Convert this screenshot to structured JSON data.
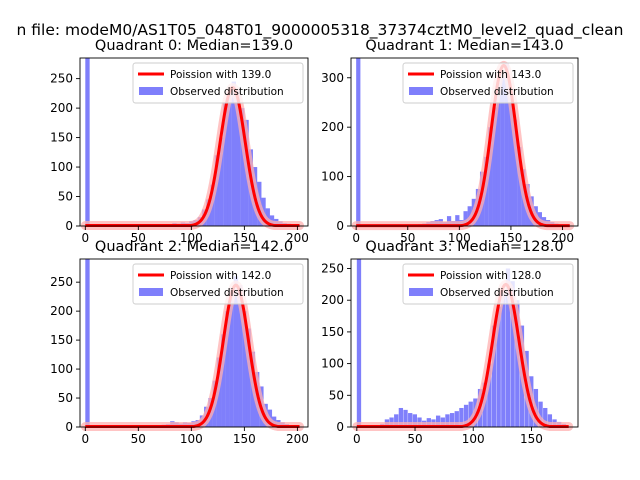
{
  "figure": {
    "suptitle": "n file: modeM0/AS1T05_048T01_9000005318_37374cztM0_level2_quad_clean"
  },
  "chart_data": [
    {
      "type": "bar",
      "title": "Quadrant 0: Median=139.0",
      "xlim": [
        -5,
        210
      ],
      "ylim": [
        0,
        285
      ],
      "xticks": [
        0,
        50,
        100,
        150,
        200
      ],
      "yticks": [
        0,
        50,
        100,
        150,
        200,
        250
      ],
      "legend": {
        "position": "top-right",
        "line_label": "Poission with 139.0",
        "bar_label": "Observed distribution"
      },
      "colors": {
        "bars": "#7f7ffb",
        "line": "#ff0000",
        "highlight": "#ffb0b0"
      },
      "poisson_mean": 139.0,
      "poisson_peak": 235,
      "poisson_sigma": 11.8,
      "bin_width": 4.1,
      "histogram": [
        [
          0,
          285
        ],
        [
          70,
          2
        ],
        [
          74,
          3
        ],
        [
          78,
          3
        ],
        [
          82,
          5
        ],
        [
          86,
          4
        ],
        [
          90,
          6
        ],
        [
          94,
          5
        ],
        [
          98,
          8
        ],
        [
          102,
          10
        ],
        [
          106,
          15
        ],
        [
          110,
          28
        ],
        [
          114,
          45
        ],
        [
          118,
          70
        ],
        [
          122,
          120
        ],
        [
          126,
          150
        ],
        [
          130,
          210
        ],
        [
          134,
          225
        ],
        [
          138,
          245
        ],
        [
          142,
          232
        ],
        [
          146,
          200
        ],
        [
          150,
          180
        ],
        [
          154,
          130
        ],
        [
          158,
          100
        ],
        [
          162,
          75
        ],
        [
          166,
          48
        ],
        [
          170,
          30
        ],
        [
          174,
          18
        ],
        [
          178,
          12
        ],
        [
          182,
          8
        ],
        [
          186,
          5
        ],
        [
          190,
          4
        ],
        [
          194,
          2
        ],
        [
          198,
          2
        ]
      ]
    },
    {
      "type": "bar",
      "title": "Quadrant 1: Median=143.0",
      "xlim": [
        -5,
        215
      ],
      "ylim": [
        0,
        340
      ],
      "xticks": [
        0,
        50,
        100,
        150,
        200
      ],
      "yticks": [
        0,
        100,
        200,
        300
      ],
      "legend": {
        "position": "top-right",
        "line_label": "Poission with 143.0",
        "bar_label": "Observed distribution"
      },
      "colors": {
        "bars": "#7f7ffb",
        "line": "#ff0000",
        "highlight": "#ffb0b0"
      },
      "poisson_mean": 143.0,
      "poisson_peak": 325,
      "poisson_sigma": 12.0,
      "bin_width": 4.1,
      "histogram": [
        [
          0,
          340
        ],
        [
          14,
          3
        ],
        [
          60,
          4
        ],
        [
          64,
          5
        ],
        [
          68,
          8
        ],
        [
          72,
          10
        ],
        [
          76,
          12
        ],
        [
          80,
          14
        ],
        [
          84,
          8
        ],
        [
          88,
          20
        ],
        [
          92,
          10
        ],
        [
          96,
          22
        ],
        [
          100,
          12
        ],
        [
          104,
          30
        ],
        [
          108,
          40
        ],
        [
          112,
          55
        ],
        [
          116,
          75
        ],
        [
          120,
          110
        ],
        [
          124,
          140
        ],
        [
          128,
          200
        ],
        [
          132,
          240
        ],
        [
          136,
          290
        ],
        [
          140,
          300
        ],
        [
          144,
          330
        ],
        [
          148,
          260
        ],
        [
          152,
          215
        ],
        [
          156,
          160
        ],
        [
          160,
          115
        ],
        [
          164,
          85
        ],
        [
          168,
          60
        ],
        [
          172,
          40
        ],
        [
          176,
          28
        ],
        [
          180,
          18
        ],
        [
          184,
          12
        ],
        [
          188,
          8
        ],
        [
          192,
          5
        ],
        [
          196,
          3
        ]
      ]
    },
    {
      "type": "bar",
      "title": "Quadrant 2: Median=142.0",
      "xlim": [
        -5,
        210
      ],
      "ylim": [
        0,
        290
      ],
      "xticks": [
        0,
        50,
        100,
        150,
        200
      ],
      "yticks": [
        0,
        50,
        100,
        150,
        200,
        250
      ],
      "legend": {
        "position": "top-right",
        "line_label": "Poission with 142.0",
        "bar_label": "Observed distribution"
      },
      "colors": {
        "bars": "#7f7ffb",
        "line": "#ff0000",
        "highlight": "#ffb0b0"
      },
      "poisson_mean": 142.0,
      "poisson_peak": 245,
      "poisson_sigma": 11.9,
      "bin_width": 4.1,
      "histogram": [
        [
          0,
          290
        ],
        [
          60,
          2
        ],
        [
          64,
          2
        ],
        [
          68,
          3
        ],
        [
          72,
          4
        ],
        [
          76,
          5
        ],
        [
          80,
          10
        ],
        [
          84,
          8
        ],
        [
          88,
          6
        ],
        [
          92,
          8
        ],
        [
          96,
          7
        ],
        [
          100,
          10
        ],
        [
          104,
          12
        ],
        [
          108,
          20
        ],
        [
          112,
          35
        ],
        [
          116,
          50
        ],
        [
          120,
          80
        ],
        [
          124,
          120
        ],
        [
          128,
          160
        ],
        [
          132,
          200
        ],
        [
          136,
          240
        ],
        [
          140,
          260
        ],
        [
          144,
          245
        ],
        [
          148,
          200
        ],
        [
          152,
          170
        ],
        [
          156,
          130
        ],
        [
          160,
          95
        ],
        [
          164,
          70
        ],
        [
          168,
          40
        ],
        [
          172,
          30
        ],
        [
          176,
          18
        ],
        [
          180,
          12
        ],
        [
          184,
          8
        ],
        [
          188,
          5
        ],
        [
          192,
          3
        ]
      ]
    },
    {
      "type": "bar",
      "title": "Quadrant 3: Median=128.0",
      "xlim": [
        -5,
        190
      ],
      "ylim": [
        0,
        265
      ],
      "xticks": [
        0,
        50,
        100,
        150
      ],
      "yticks": [
        0,
        50,
        100,
        150,
        200,
        250
      ],
      "legend": {
        "position": "top-right",
        "line_label": "Poission with 128.0",
        "bar_label": "Observed distribution"
      },
      "colors": {
        "bars": "#7f7ffb",
        "line": "#ff0000",
        "highlight": "#ffb0b0"
      },
      "poisson_mean": 128.0,
      "poisson_peak": 225,
      "poisson_sigma": 11.3,
      "bin_width": 3.7,
      "histogram": [
        [
          0,
          265
        ],
        [
          20,
          5
        ],
        [
          24,
          12
        ],
        [
          28,
          15
        ],
        [
          32,
          20
        ],
        [
          36,
          30
        ],
        [
          40,
          27
        ],
        [
          44,
          22
        ],
        [
          48,
          20
        ],
        [
          52,
          15
        ],
        [
          56,
          10
        ],
        [
          60,
          14
        ],
        [
          64,
          12
        ],
        [
          68,
          18
        ],
        [
          72,
          15
        ],
        [
          76,
          20
        ],
        [
          80,
          22
        ],
        [
          84,
          25
        ],
        [
          88,
          30
        ],
        [
          92,
          35
        ],
        [
          96,
          40
        ],
        [
          100,
          45
        ],
        [
          104,
          60
        ],
        [
          108,
          70
        ],
        [
          112,
          100
        ],
        [
          116,
          160
        ],
        [
          120,
          190
        ],
        [
          124,
          210
        ],
        [
          128,
          250
        ],
        [
          132,
          230
        ],
        [
          136,
          200
        ],
        [
          140,
          160
        ],
        [
          144,
          120
        ],
        [
          148,
          80
        ],
        [
          152,
          60
        ],
        [
          156,
          40
        ],
        [
          160,
          30
        ],
        [
          164,
          20
        ],
        [
          168,
          12
        ],
        [
          172,
          8
        ],
        [
          176,
          5
        ]
      ]
    }
  ]
}
